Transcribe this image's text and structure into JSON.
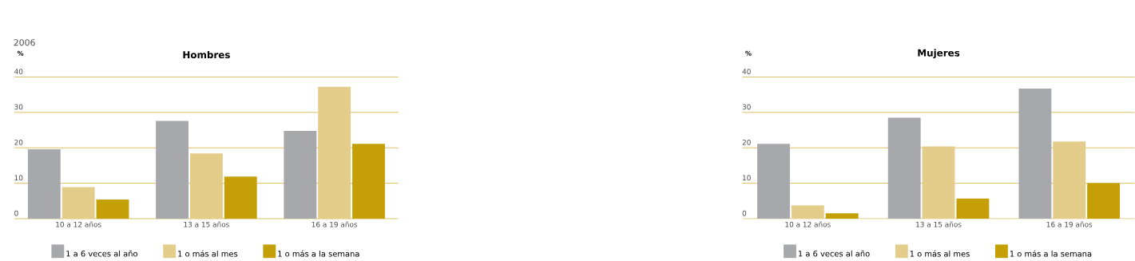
{
  "chart_data": [
    {
      "type": "bar",
      "title": "Hombres",
      "ylabel": "%",
      "annotations": [
        "2006"
      ],
      "categories": [
        "10 a 12 años",
        "13 a 15 años",
        "16 a 19 años"
      ],
      "series": [
        {
          "name": "1 a 6 veces al año",
          "color": "#a7a8ac",
          "values": [
            19.6,
            27.6,
            24.8
          ]
        },
        {
          "name": "1 o más al mes",
          "color": "#e4cc8a",
          "values": [
            8.9,
            18.4,
            37.2
          ]
        },
        {
          "name": "1 o más a la semana",
          "color": "#c59f06",
          "values": [
            5.4,
            11.9,
            21.1
          ]
        }
      ],
      "ylim": [
        0,
        40
      ],
      "yticks": [
        0,
        10,
        20,
        30,
        40
      ],
      "grid": "y",
      "legend": "bottom"
    },
    {
      "type": "bar",
      "title": "Mujeres",
      "ylabel": "%",
      "categories": [
        "10 a 12 años",
        "13 a 15 años",
        "16 a 19 años"
      ],
      "series": [
        {
          "name": "1 a 6 veces al año",
          "color": "#a7a8ac",
          "values": [
            21.1,
            28.5,
            36.7
          ]
        },
        {
          "name": "1 o más al mes",
          "color": "#e4cc8a",
          "values": [
            3.8,
            20.4,
            21.8
          ]
        },
        {
          "name": "1 o más a la semana",
          "color": "#c59f06",
          "values": [
            1.5,
            5.7,
            10.0
          ]
        }
      ],
      "ylim": [
        0,
        40
      ],
      "yticks": [
        0,
        10,
        20,
        30,
        40
      ],
      "grid": "y",
      "legend": "bottom"
    }
  ]
}
